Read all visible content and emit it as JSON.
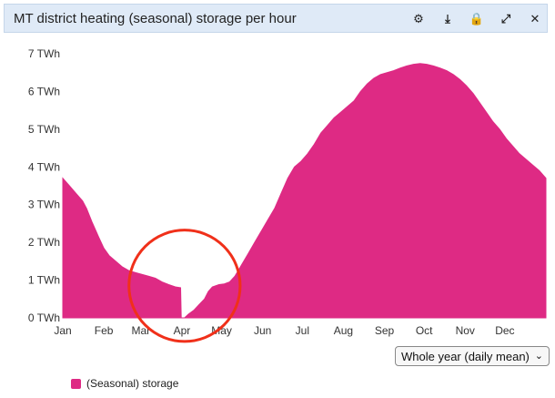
{
  "header": {
    "title": "MT district heating (seasonal) storage per hour",
    "tools": [
      {
        "name": "settings-icon",
        "glyph": "⚙"
      },
      {
        "name": "download-icon",
        "glyph": "⤓"
      },
      {
        "name": "lock-icon",
        "glyph": "🔒"
      },
      {
        "name": "expand-icon",
        "glyph": "⤢"
      },
      {
        "name": "close-icon",
        "glyph": "✕"
      }
    ]
  },
  "select": {
    "value": "Whole year (daily mean)"
  },
  "legend": {
    "label": "(Seasonal) storage"
  },
  "colors": {
    "series": "#de2a84",
    "annotation": "#f0301a"
  },
  "chart_data": {
    "type": "area",
    "yunit": "TWh",
    "ylim": [
      0,
      7
    ],
    "yticks": [
      0,
      1,
      2,
      3,
      4,
      5,
      6,
      7
    ],
    "ytick_labels": [
      "0 TWh",
      "1 TWh",
      "2 TWh",
      "3 TWh",
      "4 TWh",
      "5 TWh",
      "6 TWh",
      "7 TWh"
    ],
    "xlim": [
      0,
      365
    ],
    "xticks": [
      {
        "label": "Jan",
        "day": 0
      },
      {
        "label": "Feb",
        "day": 31
      },
      {
        "label": "Mar",
        "day": 59
      },
      {
        "label": "Apr",
        "day": 90
      },
      {
        "label": "May",
        "day": 120
      },
      {
        "label": "Jun",
        "day": 151
      },
      {
        "label": "Jul",
        "day": 181
      },
      {
        "label": "Aug",
        "day": 212
      },
      {
        "label": "Sep",
        "day": 243
      },
      {
        "label": "Oct",
        "day": 273
      },
      {
        "label": "Nov",
        "day": 304
      },
      {
        "label": "Dec",
        "day": 334
      }
    ],
    "grid": false,
    "series": [
      {
        "name": "(Seasonal) storage",
        "points": [
          [
            0,
            3.7
          ],
          [
            5,
            3.5
          ],
          [
            10,
            3.3
          ],
          [
            15,
            3.1
          ],
          [
            18,
            2.9
          ],
          [
            22,
            2.55
          ],
          [
            27,
            2.15
          ],
          [
            31,
            1.85
          ],
          [
            35,
            1.65
          ],
          [
            40,
            1.5
          ],
          [
            45,
            1.35
          ],
          [
            50,
            1.25
          ],
          [
            55,
            1.2
          ],
          [
            60,
            1.15
          ],
          [
            65,
            1.1
          ],
          [
            70,
            1.05
          ],
          [
            75,
            0.95
          ],
          [
            80,
            0.88
          ],
          [
            85,
            0.82
          ],
          [
            89,
            0.8
          ],
          [
            89.5,
            0.0
          ],
          [
            92,
            0.0
          ],
          [
            95,
            0.1
          ],
          [
            99,
            0.2
          ],
          [
            103,
            0.35
          ],
          [
            107,
            0.5
          ],
          [
            110,
            0.7
          ],
          [
            113,
            0.82
          ],
          [
            118,
            0.88
          ],
          [
            122,
            0.9
          ],
          [
            126,
            0.95
          ],
          [
            130,
            1.1
          ],
          [
            135,
            1.4
          ],
          [
            140,
            1.7
          ],
          [
            145,
            2.0
          ],
          [
            150,
            2.3
          ],
          [
            155,
            2.6
          ],
          [
            160,
            2.9
          ],
          [
            165,
            3.3
          ],
          [
            170,
            3.7
          ],
          [
            175,
            4.0
          ],
          [
            180,
            4.15
          ],
          [
            185,
            4.35
          ],
          [
            190,
            4.6
          ],
          [
            195,
            4.9
          ],
          [
            200,
            5.1
          ],
          [
            205,
            5.3
          ],
          [
            210,
            5.45
          ],
          [
            215,
            5.6
          ],
          [
            220,
            5.75
          ],
          [
            225,
            6.0
          ],
          [
            230,
            6.2
          ],
          [
            235,
            6.35
          ],
          [
            240,
            6.45
          ],
          [
            245,
            6.5
          ],
          [
            250,
            6.55
          ],
          [
            255,
            6.62
          ],
          [
            260,
            6.68
          ],
          [
            265,
            6.72
          ],
          [
            270,
            6.74
          ],
          [
            275,
            6.72
          ],
          [
            280,
            6.68
          ],
          [
            285,
            6.62
          ],
          [
            290,
            6.55
          ],
          [
            295,
            6.45
          ],
          [
            300,
            6.32
          ],
          [
            305,
            6.15
          ],
          [
            310,
            5.95
          ],
          [
            315,
            5.7
          ],
          [
            320,
            5.45
          ],
          [
            325,
            5.2
          ],
          [
            330,
            5.0
          ],
          [
            335,
            4.75
          ],
          [
            340,
            4.55
          ],
          [
            345,
            4.35
          ],
          [
            350,
            4.2
          ],
          [
            355,
            4.05
          ],
          [
            360,
            3.9
          ],
          [
            365,
            3.7
          ]
        ]
      }
    ],
    "annotations": [
      {
        "type": "circle",
        "center_day": 92,
        "center_value": 0.85,
        "radius_days": 42
      }
    ]
  }
}
